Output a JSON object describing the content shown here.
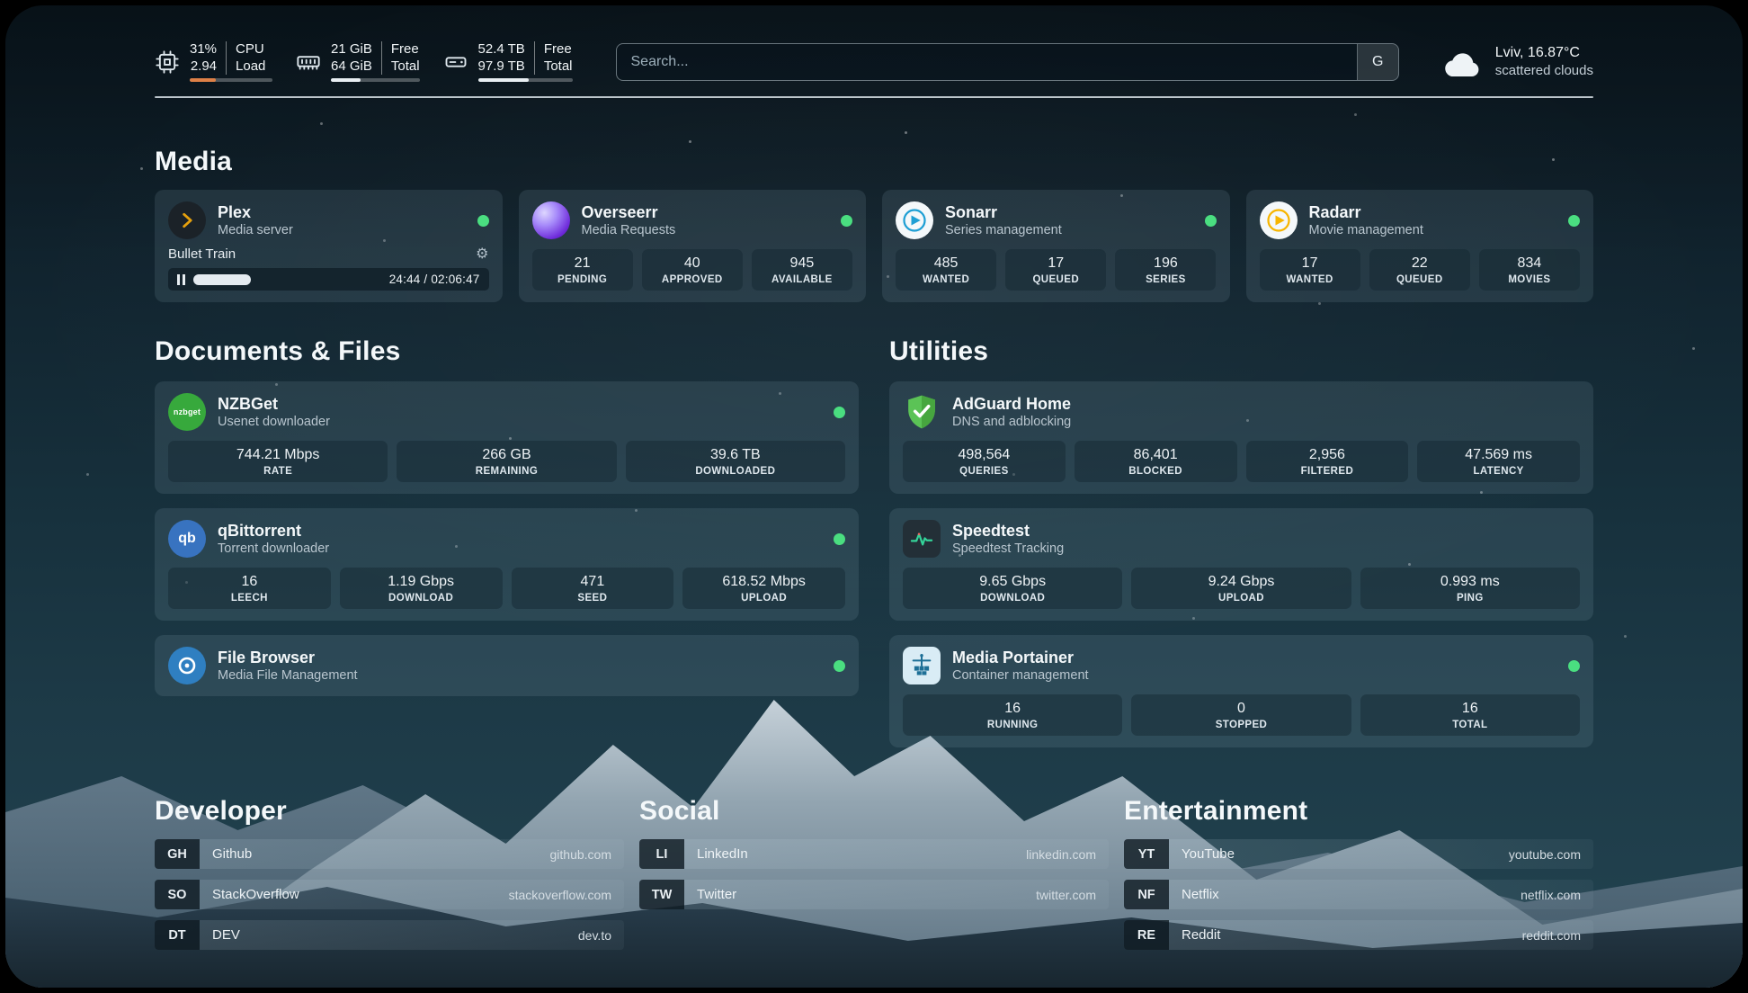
{
  "header": {
    "cpu": {
      "value1": "31%",
      "value2": "2.94",
      "label1": "CPU",
      "label2": "Load",
      "progress": 31
    },
    "memory": {
      "value1": "21 GiB",
      "value2": "64 GiB",
      "label1": "Free",
      "label2": "Total",
      "progress": 33
    },
    "disk": {
      "value1": "52.4 TB",
      "value2": "97.9 TB",
      "label1": "Free",
      "label2": "Total",
      "progress": 54
    },
    "search": {
      "placeholder": "Search...",
      "provider": "G"
    },
    "weather": {
      "location": "Lviv, 16.87°C",
      "condition": "scattered clouds"
    }
  },
  "media": {
    "title": "Media",
    "plex": {
      "name": "Plex",
      "desc": "Media server",
      "now_playing": "Bullet Train",
      "time": "24:44 / 02:06:47",
      "progress_pct": 19
    },
    "overseerr": {
      "name": "Overseerr",
      "desc": "Media Requests",
      "stats": [
        {
          "value": "21",
          "label": "PENDING"
        },
        {
          "value": "40",
          "label": "APPROVED"
        },
        {
          "value": "945",
          "label": "AVAILABLE"
        }
      ]
    },
    "sonarr": {
      "name": "Sonarr",
      "desc": "Series management",
      "stats": [
        {
          "value": "485",
          "label": "WANTED"
        },
        {
          "value": "17",
          "label": "QUEUED"
        },
        {
          "value": "196",
          "label": "SERIES"
        }
      ]
    },
    "radarr": {
      "name": "Radarr",
      "desc": "Movie management",
      "stats": [
        {
          "value": "17",
          "label": "WANTED"
        },
        {
          "value": "22",
          "label": "QUEUED"
        },
        {
          "value": "834",
          "label": "MOVIES"
        }
      ]
    }
  },
  "documents": {
    "title": "Documents & Files",
    "nzbget": {
      "name": "NZBGet",
      "desc": "Usenet downloader",
      "stats": [
        {
          "value": "744.21 Mbps",
          "label": "RATE"
        },
        {
          "value": "266 GB",
          "label": "REMAINING"
        },
        {
          "value": "39.6 TB",
          "label": "DOWNLOADED"
        }
      ]
    },
    "qbittorrent": {
      "name": "qBittorrent",
      "desc": "Torrent downloader",
      "stats": [
        {
          "value": "16",
          "label": "LEECH"
        },
        {
          "value": "1.19 Gbps",
          "label": "DOWNLOAD"
        },
        {
          "value": "471",
          "label": "SEED"
        },
        {
          "value": "618.52 Mbps",
          "label": "UPLOAD"
        }
      ]
    },
    "filebrowser": {
      "name": "File Browser",
      "desc": "Media File Management"
    }
  },
  "utilities": {
    "title": "Utilities",
    "adguard": {
      "name": "AdGuard Home",
      "desc": "DNS and adblocking",
      "stats": [
        {
          "value": "498,564",
          "label": "QUERIES"
        },
        {
          "value": "86,401",
          "label": "BLOCKED"
        },
        {
          "value": "2,956",
          "label": "FILTERED"
        },
        {
          "value": "47.569 ms",
          "label": "LATENCY"
        }
      ]
    },
    "speedtest": {
      "name": "Speedtest",
      "desc": "Speedtest Tracking",
      "stats": [
        {
          "value": "9.65 Gbps",
          "label": "DOWNLOAD"
        },
        {
          "value": "9.24 Gbps",
          "label": "UPLOAD"
        },
        {
          "value": "0.993 ms",
          "label": "PING"
        }
      ]
    },
    "portainer": {
      "name": "Media Portainer",
      "desc": "Container management",
      "stats": [
        {
          "value": "16",
          "label": "RUNNING"
        },
        {
          "value": "0",
          "label": "STOPPED"
        },
        {
          "value": "16",
          "label": "TOTAL"
        }
      ]
    }
  },
  "bookmarks": {
    "developer": {
      "title": "Developer",
      "items": [
        {
          "abbr": "GH",
          "name": "Github",
          "url": "github.com"
        },
        {
          "abbr": "SO",
          "name": "StackOverflow",
          "url": "stackoverflow.com"
        },
        {
          "abbr": "DT",
          "name": "DEV",
          "url": "dev.to"
        }
      ]
    },
    "social": {
      "title": "Social",
      "items": [
        {
          "abbr": "LI",
          "name": "LinkedIn",
          "url": "linkedin.com"
        },
        {
          "abbr": "TW",
          "name": "Twitter",
          "url": "twitter.com"
        }
      ]
    },
    "entertainment": {
      "title": "Entertainment",
      "items": [
        {
          "abbr": "YT",
          "name": "YouTube",
          "url": "youtube.com"
        },
        {
          "abbr": "NF",
          "name": "Netflix",
          "url": "netflix.com"
        },
        {
          "abbr": "RE",
          "name": "Reddit",
          "url": "reddit.com"
        }
      ]
    }
  },
  "icons": {
    "gear": "⚙",
    "qbittorrent_label": "qb",
    "nzbget_label": "nzbget"
  },
  "colors": {
    "status_online": "#4ade80",
    "plex_amber": "#e5a00d",
    "cpu_bar": "#dd8047"
  }
}
